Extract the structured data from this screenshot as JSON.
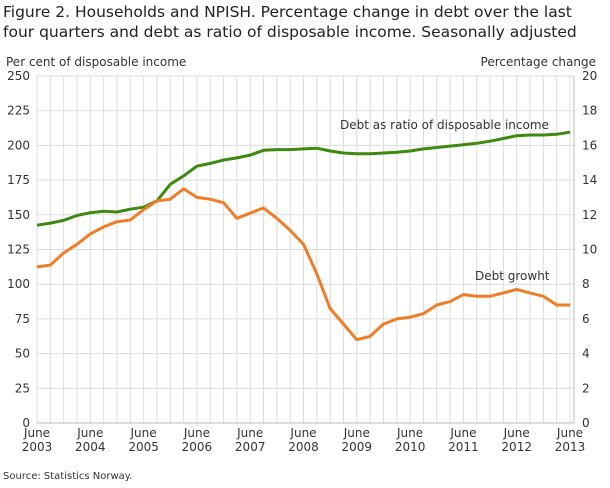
{
  "chart_data": {
    "type": "line",
    "title": "Figure 2. Households and NPISH. Percentage change in debt over the last four quarters and debt as ratio of disposable income. Seasonally adjusted",
    "source": "Source: Statistics Norway.",
    "y_left_label": "Per cent of disposable income",
    "y_right_label": "Percentage change",
    "y_left_lim": [
      0,
      250
    ],
    "y_left_ticks": [
      "0",
      "25",
      "50",
      "75",
      "100",
      "125",
      "150",
      "175",
      "200",
      "225",
      "250"
    ],
    "y_right_lim": [
      0,
      20
    ],
    "y_right_ticks": [
      "0",
      "2",
      "4",
      "6",
      "8",
      "10",
      "12",
      "14",
      "16",
      "18",
      "20"
    ],
    "x_start": "June 2003",
    "x_frequency": "quarterly",
    "x_tick_labels": [
      {
        "month": "June",
        "year": "2003"
      },
      {
        "month": "June",
        "year": "2004"
      },
      {
        "month": "June",
        "year": "2005"
      },
      {
        "month": "June",
        "year": "2006"
      },
      {
        "month": "June",
        "year": "2007"
      },
      {
        "month": "June",
        "year": "2008"
      },
      {
        "month": "June",
        "year": "2009"
      },
      {
        "month": "June",
        "year": "2010"
      },
      {
        "month": "June",
        "year": "2011"
      },
      {
        "month": "June",
        "year": "2012"
      },
      {
        "month": "June",
        "year": "2013"
      }
    ],
    "grid": true,
    "series": [
      {
        "name": "Debt as ratio of disposable income",
        "axis": "left",
        "color": "#3d8a0f",
        "values": [
          142.5,
          144,
          146,
          149.5,
          151.5,
          152.5,
          152,
          154,
          155.5,
          160,
          172,
          178,
          185,
          187,
          189.5,
          191,
          193,
          196.5,
          197,
          197,
          197.5,
          198,
          196,
          194.5,
          194,
          194,
          194.5,
          195,
          196,
          197.5,
          198.5,
          199.5,
          200.5,
          201.5,
          203,
          205,
          207,
          207.5,
          207.5,
          208,
          209.5
        ]
      },
      {
        "name": "Debt growht",
        "axis": "right",
        "color": "#f07d26",
        "values": [
          9.0,
          9.1,
          9.8,
          10.3,
          10.9,
          11.3,
          11.6,
          11.7,
          12.3,
          12.8,
          12.9,
          13.5,
          13.0,
          12.9,
          12.7,
          11.8,
          12.1,
          12.4,
          11.8,
          11.1,
          10.3,
          8.6,
          6.6,
          5.7,
          4.8,
          5.0,
          5.7,
          6.0,
          6.1,
          6.3,
          6.8,
          7.0,
          7.4,
          7.3,
          7.3,
          7.5,
          7.7,
          7.5,
          7.3,
          6.8,
          6.8
        ]
      }
    ]
  }
}
